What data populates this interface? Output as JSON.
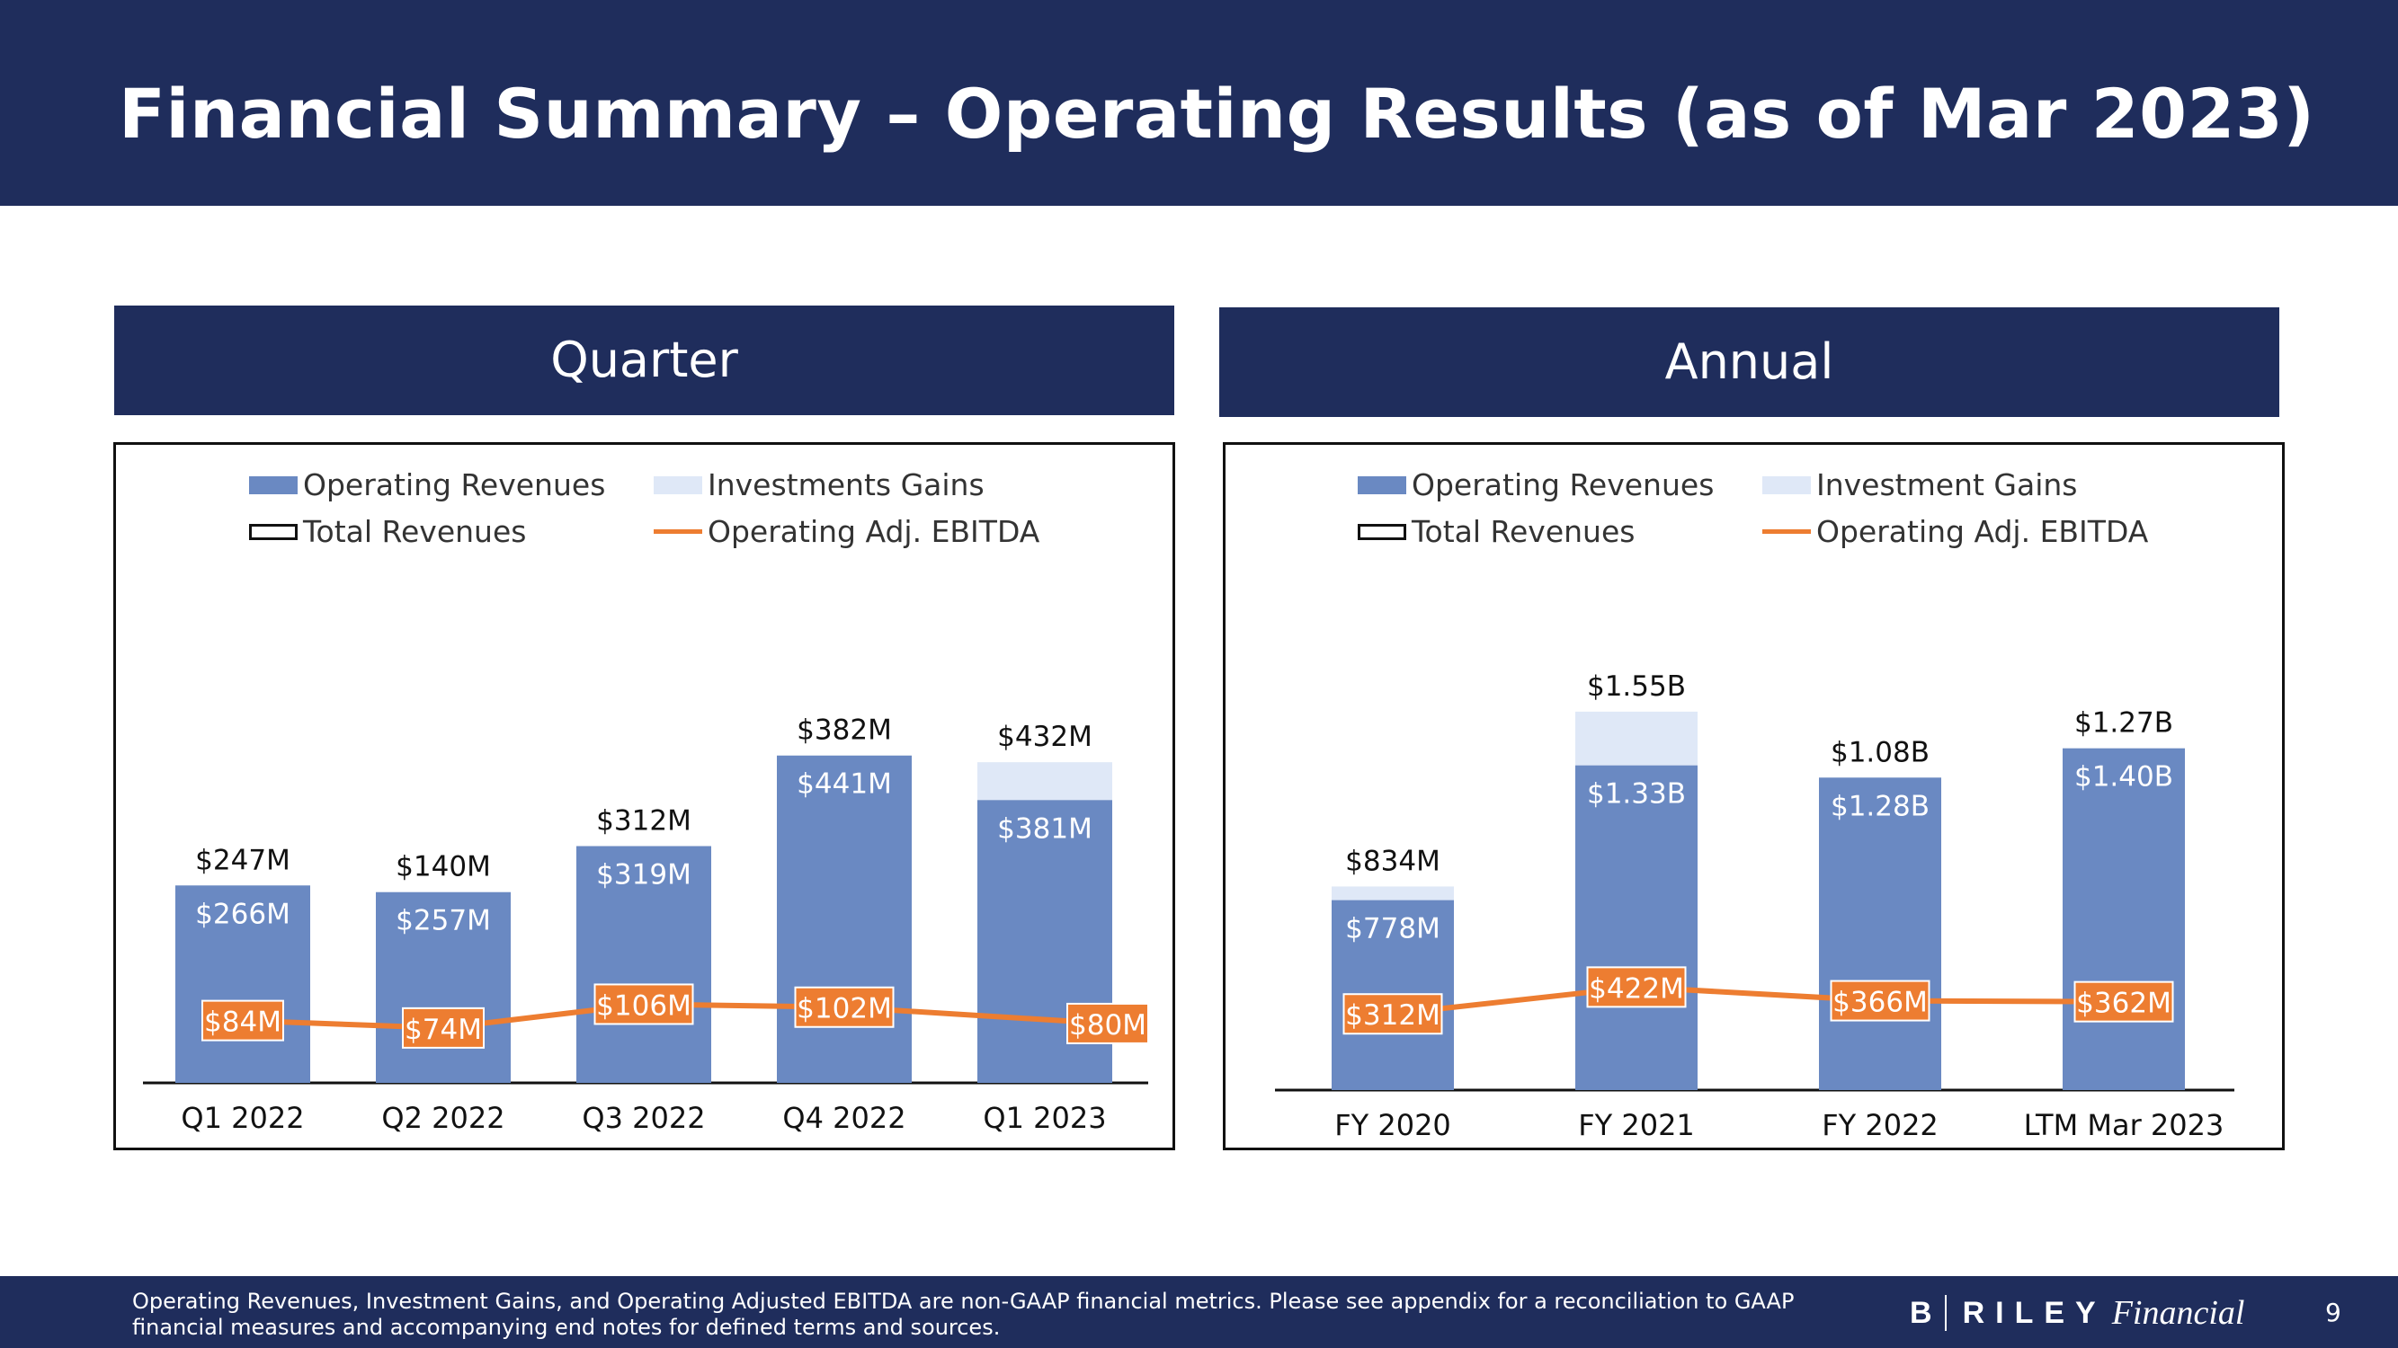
{
  "header": {
    "title": "Financial Summary – Operating Results (as of Mar 2023)"
  },
  "colors": {
    "navy": "#1f2d5c",
    "operating": "#6a89c2",
    "investment": "#dfe8f7",
    "ebitda": "#ed7d31"
  },
  "legend": {
    "quarter": {
      "operating": "Operating Revenues",
      "investment": "Investments Gains",
      "total": "Total Revenues",
      "ebitda": "Operating Adj. EBITDA"
    },
    "annual": {
      "operating": "Operating Revenues",
      "investment": "Investment Gains",
      "total": "Total Revenues",
      "ebitda": "Operating Adj. EBITDA"
    }
  },
  "chart_data": [
    {
      "type": "bar",
      "title": "Quarter",
      "categories": [
        "Q1 2022",
        "Q2 2022",
        "Q3 2022",
        "Q4 2022",
        "Q1 2023"
      ],
      "series": [
        {
          "name": "Operating Revenues",
          "values": [
            266,
            257,
            319,
            441,
            381
          ],
          "labels": [
            "$266M",
            "$257M",
            "$319M",
            "$441M",
            "$381M"
          ]
        },
        {
          "name": "Investments Gains",
          "values": [
            0,
            0,
            0,
            0,
            51
          ]
        },
        {
          "name": "Total Revenues",
          "values": [
            247,
            140,
            312,
            382,
            432
          ],
          "labels": [
            "$247M",
            "$140M",
            "$312M",
            "$382M",
            "$432M"
          ]
        },
        {
          "name": "Operating Adj. EBITDA",
          "values": [
            84,
            74,
            106,
            102,
            80
          ],
          "labels": [
            "$84M",
            "$74M",
            "$106M",
            "$102M",
            "$80M"
          ]
        }
      ],
      "ylim": [
        0,
        500
      ]
    },
    {
      "type": "bar",
      "title": "Annual",
      "categories": [
        "FY 2020",
        "FY 2021",
        "FY 2022",
        "LTM Mar 2023"
      ],
      "series": [
        {
          "name": "Operating Revenues",
          "values": [
            778,
            1330,
            1280,
            1400
          ],
          "labels": [
            "$778M",
            "$1.33B",
            "$1.28B",
            "$1.40B"
          ]
        },
        {
          "name": "Investment Gains",
          "values": [
            56,
            220,
            0,
            0
          ]
        },
        {
          "name": "Total Revenues",
          "values": [
            834,
            1550,
            1080,
            1270
          ],
          "labels": [
            "$834M",
            "$1.55B",
            "$1.08B",
            "$1.27B"
          ]
        },
        {
          "name": "Operating Adj. EBITDA",
          "values": [
            312,
            422,
            366,
            362
          ],
          "labels": [
            "$312M",
            "$422M",
            "$366M",
            "$362M"
          ]
        }
      ],
      "ylim": [
        0,
        1800
      ]
    }
  ],
  "footer": {
    "note": "Operating Revenues, Investment Gains, and Operating Adjusted EBITDA are non-GAAP financial metrics. Please see appendix for a reconciliation to GAAP financial measures and accompanying end notes for defined terms and sources.",
    "logo_b": "B",
    "logo_riley": "RILEY",
    "logo_financial": "Financial",
    "page_number": "9"
  }
}
